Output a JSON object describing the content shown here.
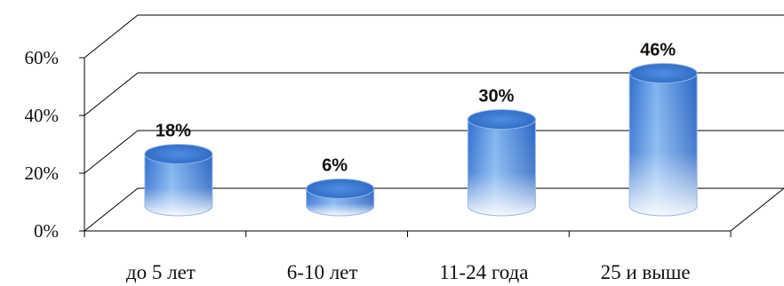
{
  "chart_data": {
    "type": "bar",
    "style": "3d-cylinder",
    "categories": [
      "до 5 лет",
      "6-10 лет",
      "11-24 года",
      "25 и выше"
    ],
    "values": [
      18,
      6,
      30,
      46
    ],
    "data_labels": [
      "18%",
      "6%",
      "30%",
      "46%"
    ],
    "yticks": [
      "0%",
      "20%",
      "40%",
      "60%"
    ],
    "ylim": [
      0,
      60
    ],
    "grid": true,
    "legend": "none",
    "colors": {
      "bar_top": "#3c7fd8",
      "bar_mid": "#6fa6ea",
      "bar_bottom": "#f2f4fb",
      "grid": "#000000"
    }
  }
}
